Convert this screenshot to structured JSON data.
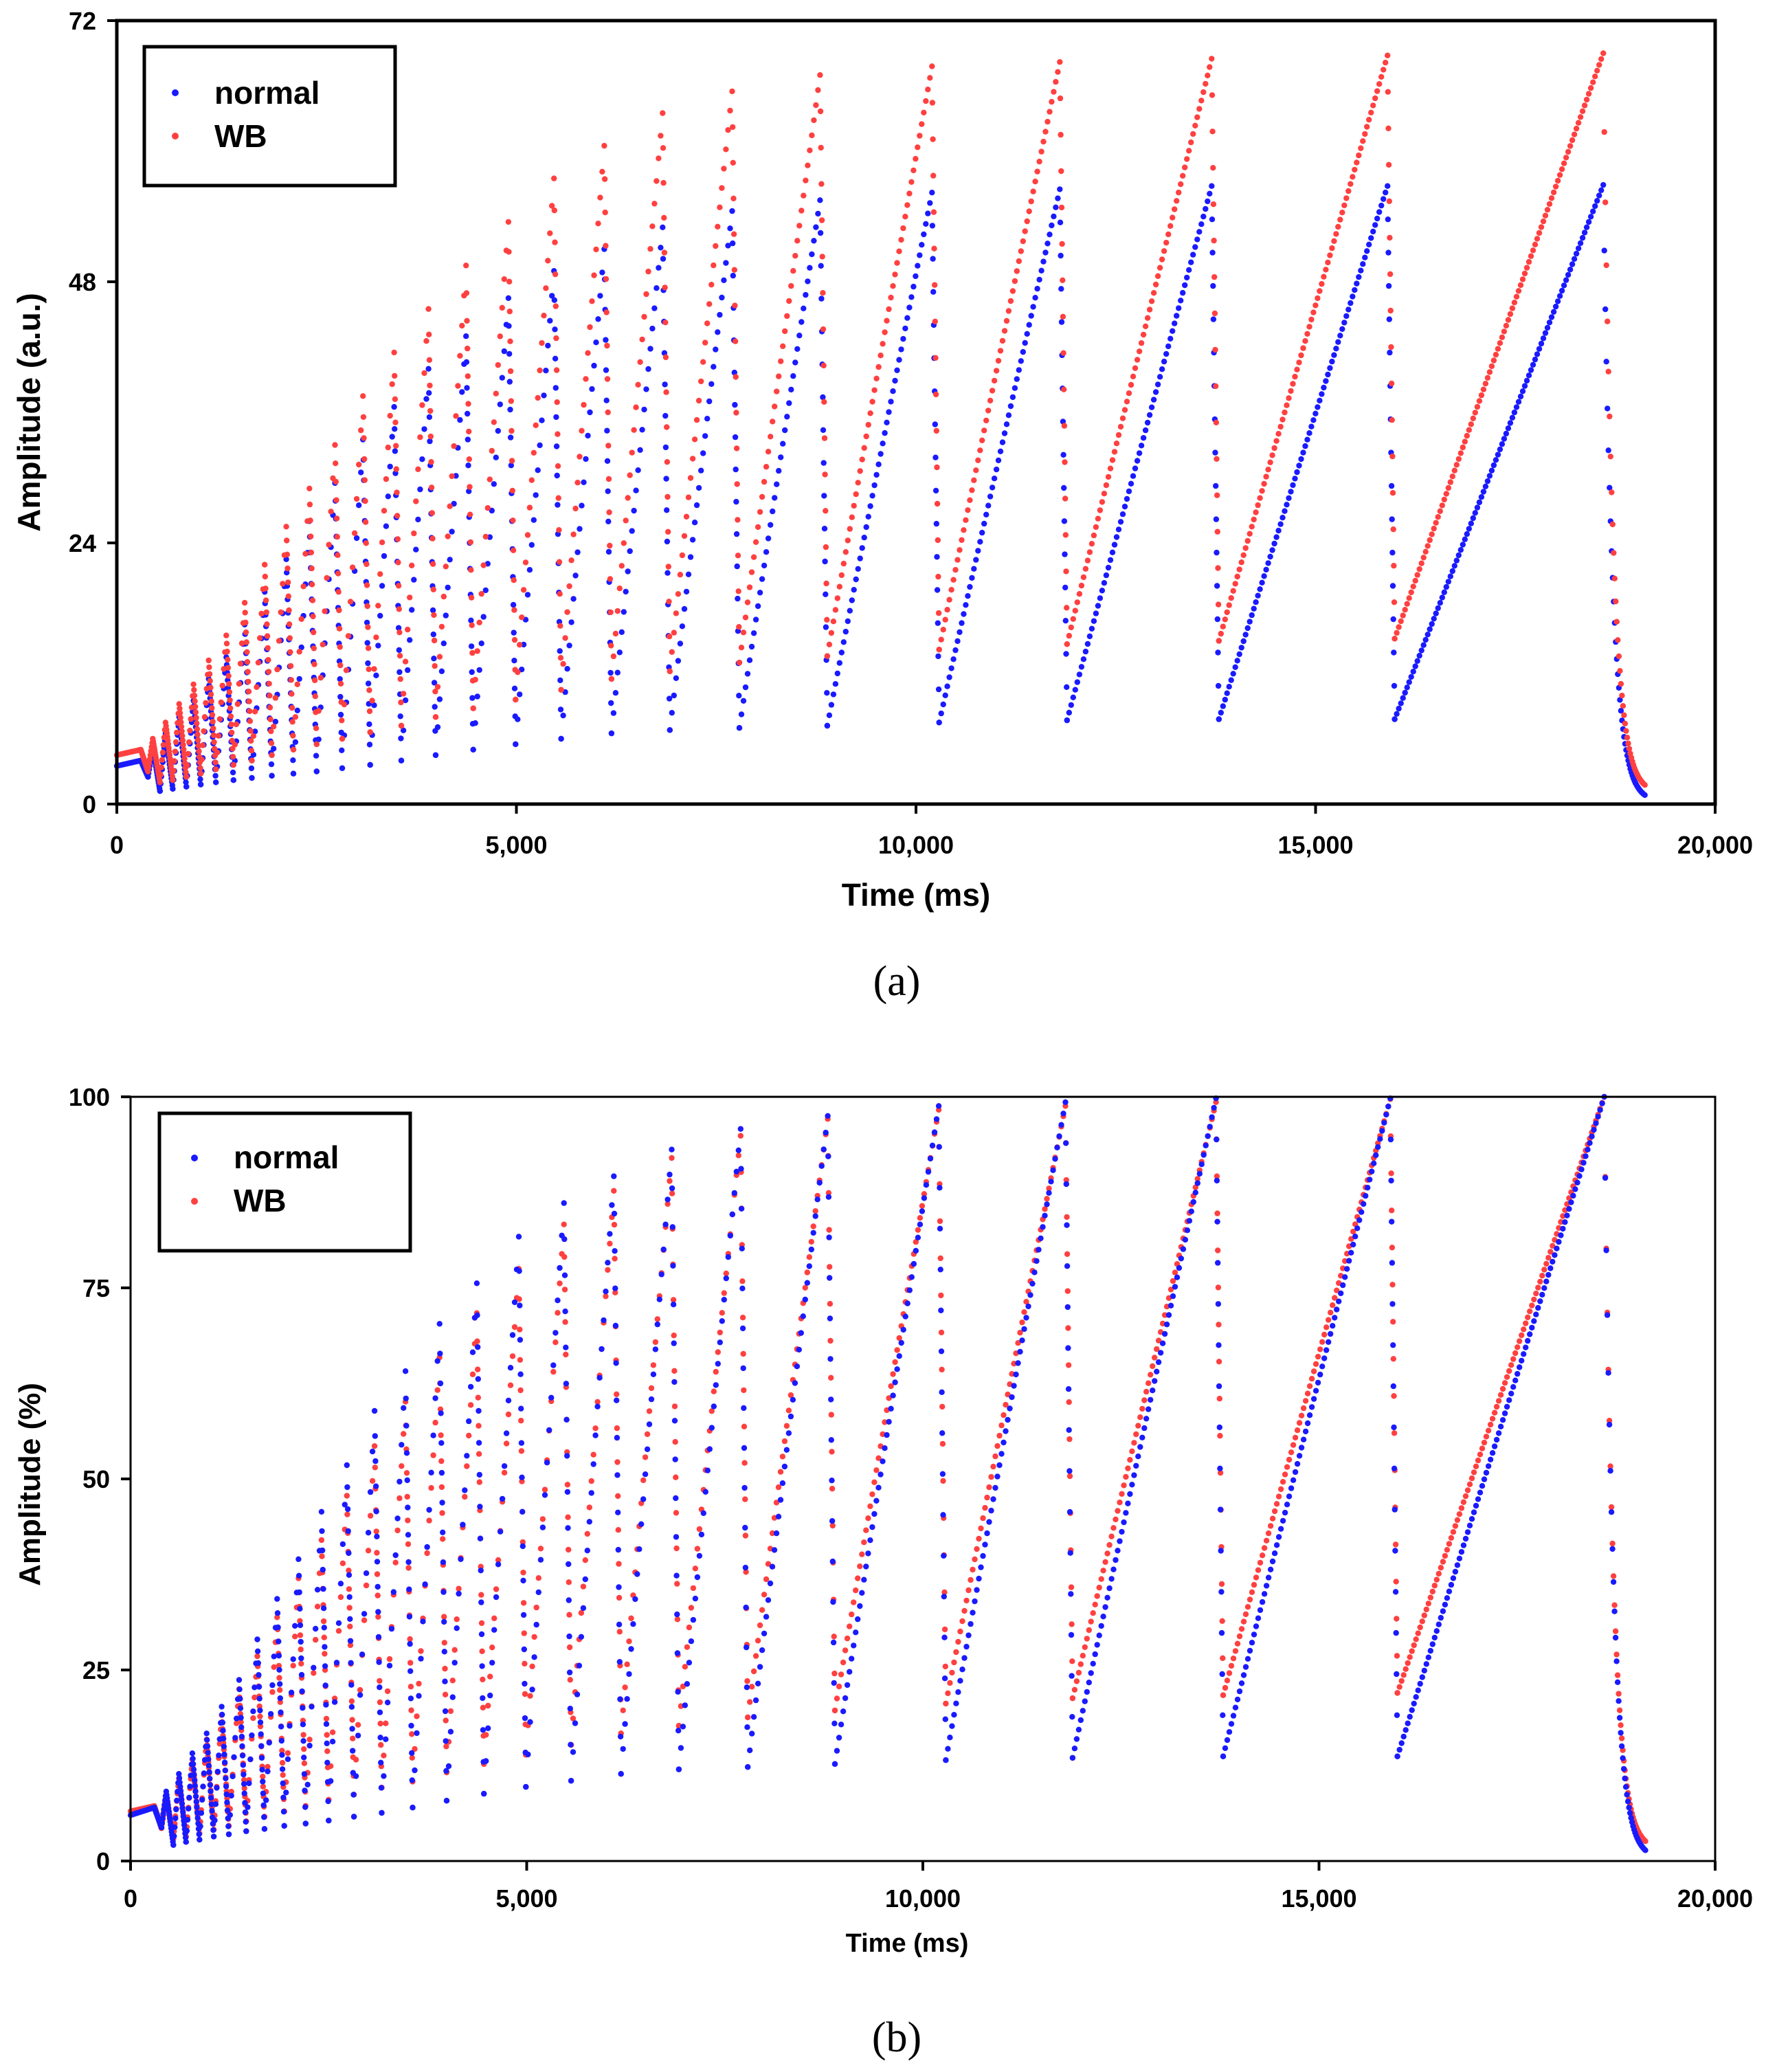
{
  "colors": {
    "normal": "#1a1aff",
    "wb": "#ff4040",
    "axis": "#000000"
  },
  "chart_data": [
    {
      "panel": "(a)",
      "type": "scatter",
      "title": "",
      "xlabel": "Time (ms)",
      "ylabel": "Amplitude (a.u.)",
      "xlim": [
        0,
        20000
      ],
      "ylim": [
        0,
        72
      ],
      "xticks": [
        0,
        5000,
        10000,
        15000,
        20000
      ],
      "xtick_labels": [
        "0",
        "5,000",
        "10,000",
        "15,000",
        "20,000"
      ],
      "yticks": [
        0,
        24,
        48,
        72
      ],
      "ytick_labels": [
        "0",
        "24",
        "48",
        "72"
      ],
      "legend": {
        "position": "top-left",
        "entries": [
          "normal",
          "WB"
        ]
      },
      "series": [
        {
          "name": "normal",
          "color": "#1a1aff",
          "start_value": 3.5,
          "tail_value": 0.2,
          "cycles": [
            [
              300,
              4.0,
              2.5
            ],
            [
              450,
              5.2,
              1.2
            ],
            [
              610,
              6.5,
              1.4
            ],
            [
              780,
              8.0,
              1.6
            ],
            [
              960,
              9.5,
              1.8
            ],
            [
              1150,
              11.5,
              2.0
            ],
            [
              1370,
              13.5,
              2.2
            ],
            [
              1600,
              16.5,
              2.4
            ],
            [
              1850,
              19.5,
              2.6
            ],
            [
              2120,
              22.5,
              2.8
            ],
            [
              2410,
              26.0,
              3.0
            ],
            [
              2730,
              29.5,
              3.3
            ],
            [
              3080,
              33.5,
              3.6
            ],
            [
              3470,
              36.5,
              4.0
            ],
            [
              3900,
              40.0,
              4.5
            ],
            [
              4370,
              43.0,
              5.0
            ],
            [
              4900,
              46.5,
              5.5
            ],
            [
              5470,
              49.0,
              6.0
            ],
            [
              6100,
              51.0,
              6.5
            ],
            [
              6830,
              53.0,
              6.8
            ],
            [
              7700,
              54.5,
              7.0
            ],
            [
              8800,
              55.5,
              7.2
            ],
            [
              10200,
              56.2,
              7.5
            ],
            [
              11800,
              56.5,
              7.7
            ],
            [
              13700,
              56.8,
              7.8
            ],
            [
              15900,
              56.8,
              7.8
            ],
            [
              18600,
              56.9,
              0.2
            ]
          ]
        },
        {
          "name": "WB",
          "color": "#ff4040",
          "start_value": 4.5,
          "tail_value": 1.0,
          "cycles": [
            [
              300,
              5.0,
              3.0
            ],
            [
              450,
              6.0,
              2.0
            ],
            [
              610,
              7.5,
              2.2
            ],
            [
              780,
              9.2,
              2.5
            ],
            [
              960,
              11.0,
              2.8
            ],
            [
              1150,
              13.2,
              3.2
            ],
            [
              1370,
              15.5,
              3.6
            ],
            [
              1600,
              18.5,
              4.0
            ],
            [
              1850,
              22.0,
              4.5
            ],
            [
              2120,
              25.5,
              5.0
            ],
            [
              2410,
              29.0,
              5.5
            ],
            [
              2730,
              33.0,
              6.0
            ],
            [
              3080,
              37.5,
              6.6
            ],
            [
              3470,
              41.5,
              7.2
            ],
            [
              3900,
              45.5,
              8.0
            ],
            [
              4370,
              49.5,
              8.8
            ],
            [
              4900,
              53.5,
              9.6
            ],
            [
              5470,
              57.5,
              10.5
            ],
            [
              6100,
              60.5,
              11.5
            ],
            [
              6830,
              63.5,
              12.2
            ],
            [
              7700,
              65.5,
              13.0
            ],
            [
              8800,
              67.0,
              13.6
            ],
            [
              10200,
              67.8,
              14.2
            ],
            [
              11800,
              68.2,
              14.7
            ],
            [
              13700,
              68.5,
              15.0
            ],
            [
              15900,
              68.8,
              15.2
            ],
            [
              18600,
              69.0,
              1.0
            ]
          ]
        }
      ]
    },
    {
      "panel": "(b)",
      "type": "scatter",
      "title": "",
      "xlabel": "Time (ms)",
      "ylabel": "Amplitude (%)",
      "xlim": [
        0,
        20000
      ],
      "ylim": [
        0,
        100
      ],
      "xticks": [
        0,
        5000,
        10000,
        15000,
        20000
      ],
      "xtick_labels": [
        "0",
        "5,000",
        "10,000",
        "15,000",
        "20,000"
      ],
      "yticks": [
        0,
        25,
        50,
        75,
        100
      ],
      "ytick_labels": [
        "0",
        "25",
        "50",
        "75",
        "100"
      ],
      "legend": {
        "position": "top-left",
        "entries": [
          "normal",
          "WB"
        ]
      },
      "series": [
        {
          "name": "WB",
          "color": "#ff4040",
          "start_value": 6.5,
          "tail_value": 1.5,
          "cycles": [
            [
              300,
              7.2,
              4.3
            ],
            [
              450,
              8.7,
              2.9
            ],
            [
              610,
              10.8,
              3.2
            ],
            [
              780,
              13.3,
              3.6
            ],
            [
              960,
              15.9,
              4.1
            ],
            [
              1150,
              19.1,
              4.6
            ],
            [
              1370,
              22.5,
              5.2
            ],
            [
              1600,
              26.8,
              5.8
            ],
            [
              1850,
              31.9,
              6.5
            ],
            [
              2120,
              37.0,
              7.2
            ],
            [
              2410,
              42.0,
              8.0
            ],
            [
              2730,
              47.8,
              8.7
            ],
            [
              3080,
              54.3,
              9.6
            ],
            [
              3470,
              60.1,
              10.4
            ],
            [
              3900,
              65.9,
              11.6
            ],
            [
              4370,
              71.7,
              12.7
            ],
            [
              4900,
              77.5,
              13.9
            ],
            [
              5470,
              83.3,
              15.2
            ],
            [
              6100,
              87.7,
              16.7
            ],
            [
              6830,
              92.0,
              17.7
            ],
            [
              7700,
              94.9,
              18.8
            ],
            [
              8800,
              97.1,
              19.7
            ],
            [
              10200,
              98.3,
              20.6
            ],
            [
              11800,
              98.8,
              21.3
            ],
            [
              13700,
              99.3,
              21.7
            ],
            [
              15900,
              99.7,
              22.0
            ],
            [
              18600,
              100.0,
              1.5
            ]
          ]
        },
        {
          "name": "normal",
          "color": "#1a1aff",
          "start_value": 6.0,
          "tail_value": 0.3,
          "cycles": [
            [
              300,
              7.0,
              4.4
            ],
            [
              450,
              9.1,
              2.1
            ],
            [
              610,
              11.4,
              2.5
            ],
            [
              780,
              14.1,
              2.8
            ],
            [
              960,
              16.7,
              3.2
            ],
            [
              1150,
              20.2,
              3.5
            ],
            [
              1370,
              23.7,
              3.9
            ],
            [
              1600,
              29.0,
              4.2
            ],
            [
              1850,
              34.3,
              4.6
            ],
            [
              2120,
              39.5,
              4.9
            ],
            [
              2410,
              45.7,
              5.3
            ],
            [
              2730,
              51.8,
              5.8
            ],
            [
              3080,
              58.9,
              6.3
            ],
            [
              3470,
              64.1,
              7.0
            ],
            [
              3900,
              70.3,
              7.9
            ],
            [
              4370,
              75.6,
              8.8
            ],
            [
              4900,
              81.7,
              9.7
            ],
            [
              5470,
              86.1,
              10.5
            ],
            [
              6100,
              89.6,
              11.4
            ],
            [
              6830,
              93.1,
              12.0
            ],
            [
              7700,
              95.8,
              12.3
            ],
            [
              8800,
              97.5,
              12.7
            ],
            [
              10200,
              98.8,
              13.2
            ],
            [
              11800,
              99.3,
              13.5
            ],
            [
              13700,
              99.8,
              13.7
            ],
            [
              15900,
              99.8,
              13.7
            ],
            [
              18600,
              100.0,
              0.3
            ]
          ]
        }
      ]
    }
  ]
}
